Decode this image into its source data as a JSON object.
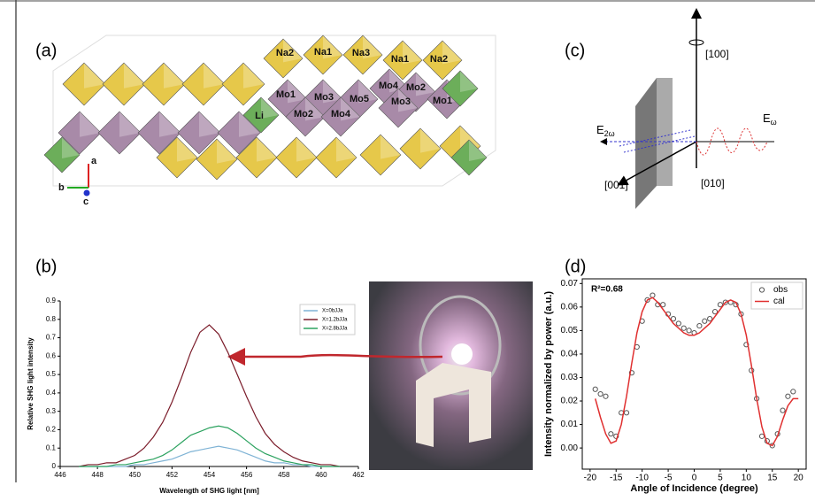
{
  "panel_labels": [
    "(a)",
    "(b)",
    "(c)",
    "(d)"
  ],
  "structure": {
    "labels": [
      "Na2",
      "Na1",
      "Na3",
      "Na1",
      "Na2",
      "Mo1",
      "Mo3",
      "Mo5",
      "Mo4",
      "Mo2",
      "Mo1",
      "Li",
      "Mo2",
      "Mo4",
      "Mo3"
    ],
    "axes": [
      "a",
      "b",
      "c"
    ]
  },
  "geometry": {
    "labels": [
      "[100]",
      "[001]",
      "[010]"
    ],
    "e2w": {
      "base": "E",
      "sub": "2ω"
    },
    "ew": {
      "base": "E",
      "sub": "ω"
    }
  },
  "chart_data": [
    {
      "type": "line",
      "xlabel": "Wavelength of SHG light [nm]",
      "ylabel": "Relative SHG light intensity",
      "xlim": [
        446,
        462
      ],
      "xticks": [
        446,
        448,
        450,
        452,
        454,
        456,
        458,
        460,
        462
      ],
      "ylim": [
        0,
        0.9
      ],
      "yticks": [
        0,
        0.1,
        0.2,
        0.3,
        0.4,
        0.5,
        0.6,
        0.7,
        0.8,
        0.9
      ],
      "legend": "upper right",
      "x": [
        447,
        447.5,
        448,
        448.5,
        449,
        449.5,
        450,
        450.5,
        451,
        451.5,
        452,
        452.5,
        453,
        453.5,
        454,
        454.5,
        455,
        455.5,
        456,
        456.5,
        457,
        457.5,
        458,
        458.5,
        459,
        459.5,
        460,
        460.5,
        461
      ],
      "series": [
        {
          "name": "X=0bJJa",
          "color": "#7fb3d5",
          "values": [
            0,
            0,
            0,
            0,
            0,
            0,
            0.01,
            0.01,
            0.02,
            0.03,
            0.04,
            0.06,
            0.08,
            0.09,
            0.1,
            0.11,
            0.1,
            0.09,
            0.07,
            0.05,
            0.03,
            0.02,
            0.02,
            0.01,
            0.01,
            0,
            0,
            0,
            0
          ]
        },
        {
          "name": "X=1.2bJJa",
          "color": "#7b1c2a",
          "values": [
            0,
            0.01,
            0.01,
            0.02,
            0.02,
            0.04,
            0.06,
            0.1,
            0.16,
            0.24,
            0.35,
            0.48,
            0.62,
            0.73,
            0.77,
            0.72,
            0.62,
            0.5,
            0.38,
            0.27,
            0.18,
            0.12,
            0.08,
            0.05,
            0.03,
            0.02,
            0.01,
            0.01,
            0
          ]
        },
        {
          "name": "X=2.8bJJa",
          "color": "#2ca25f",
          "values": [
            0,
            0,
            0,
            0,
            0.01,
            0.01,
            0.02,
            0.03,
            0.04,
            0.06,
            0.09,
            0.13,
            0.17,
            0.19,
            0.21,
            0.22,
            0.21,
            0.18,
            0.14,
            0.1,
            0.07,
            0.05,
            0.03,
            0.02,
            0.01,
            0.01,
            0,
            0,
            0
          ]
        }
      ]
    },
    {
      "type": "scatter",
      "xlabel": "Angle of Incidence (degree)",
      "ylabel": "Intensity normalized by power (a.u.)",
      "annotation": "R²=0.68",
      "xlim": [
        -21.5,
        21.5
      ],
      "xticks": [
        -20,
        -15,
        -10,
        -5,
        0,
        5,
        10,
        15,
        20
      ],
      "ylim": [
        -0.009,
        0.072
      ],
      "yticks": [
        {
          "value": 0,
          "label": "0.00"
        },
        {
          "value": 0.01,
          "label": "0.01"
        },
        {
          "value": 0.02,
          "label": "0.02"
        },
        {
          "value": 0.03,
          "label": "0.03"
        },
        {
          "value": 0.04,
          "label": "0.04"
        },
        {
          "value": 0.05,
          "label": "0.05"
        },
        {
          "value": 0.06,
          "label": "0.06"
        },
        {
          "value": 0.07,
          "label": "0.07"
        }
      ],
      "legend": "upper right",
      "series": [
        {
          "name": "obs",
          "color": "#555555",
          "kind": "markers",
          "x": [
            -19,
            -18,
            -17,
            -16,
            -15,
            -14,
            -13,
            -12,
            -11,
            -10,
            -9,
            -8,
            -7,
            -6,
            -5,
            -4,
            -3,
            -2,
            -1,
            0,
            1,
            2,
            3,
            4,
            5,
            6,
            7,
            8,
            9,
            10,
            11,
            12,
            13,
            14,
            15,
            16,
            17,
            18,
            19
          ],
          "values": [
            0.025,
            0.023,
            0.022,
            0.006,
            0.005,
            0.015,
            0.015,
            0.032,
            0.043,
            0.054,
            0.063,
            0.065,
            0.061,
            0.061,
            0.057,
            0.055,
            0.053,
            0.051,
            0.05,
            0.049,
            0.052,
            0.054,
            0.055,
            0.058,
            0.061,
            0.062,
            0.062,
            0.061,
            0.057,
            0.044,
            0.033,
            0.021,
            0.005,
            0.003,
            0.001,
            0.006,
            0.016,
            0.022,
            0.024
          ]
        },
        {
          "name": "cal",
          "color": "#e03030",
          "kind": "line",
          "x": [
            -19,
            -18,
            -17,
            -16,
            -15,
            -14,
            -13,
            -12,
            -11,
            -10,
            -9,
            -8,
            -7,
            -6,
            -5,
            -4,
            -3,
            -2,
            -1,
            0,
            1,
            2,
            3,
            4,
            5,
            6,
            7,
            8,
            9,
            10,
            11,
            12,
            13,
            14,
            15,
            16,
            17,
            18,
            19,
            20
          ],
          "values": [
            0.021,
            0.013,
            0.006,
            0.002,
            0.003,
            0.01,
            0.022,
            0.036,
            0.049,
            0.058,
            0.063,
            0.064,
            0.062,
            0.059,
            0.056,
            0.053,
            0.051,
            0.049,
            0.048,
            0.048,
            0.049,
            0.051,
            0.053,
            0.056,
            0.059,
            0.062,
            0.063,
            0.062,
            0.057,
            0.048,
            0.035,
            0.021,
            0.009,
            0.002,
            0.001,
            0.005,
            0.012,
            0.018,
            0.021,
            0.021
          ]
        }
      ]
    }
  ]
}
